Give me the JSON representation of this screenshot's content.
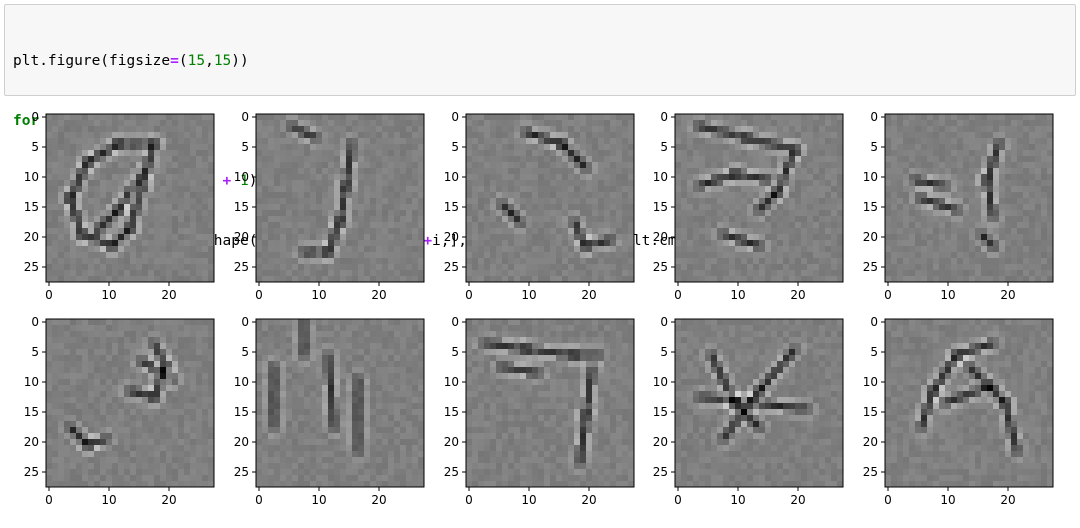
{
  "code_cell": {
    "lines": [
      "plt.figure(figsize=(15,15))",
      "for i in range(10):",
      "    plt.subplot(5, 5, i + 1)",
      "    plt.imshow( (np.reshape(x_infer_from_grey[0+i,], (28, 28))), cmap=plt.cm.gray_r)"
    ]
  },
  "chart_data": {
    "type": "heatmap",
    "colormap": "gray_r",
    "layout": "grid of 10 image subplots, 2 rows x 5 columns",
    "image_shape": [
      28,
      28
    ],
    "x_ticks": [
      "0",
      "10",
      "20"
    ],
    "y_ticks": [
      "0",
      "5",
      "10",
      "15",
      "20",
      "25"
    ],
    "panels": [
      {
        "index": 0
      },
      {
        "index": 1
      },
      {
        "index": 2
      },
      {
        "index": 3
      },
      {
        "index": 4
      },
      {
        "index": 5
      },
      {
        "index": 6
      },
      {
        "index": 7
      },
      {
        "index": 8
      },
      {
        "index": 9
      }
    ],
    "colors": {
      "background_grey": "#7f7f7f",
      "frame": "#000000"
    }
  }
}
